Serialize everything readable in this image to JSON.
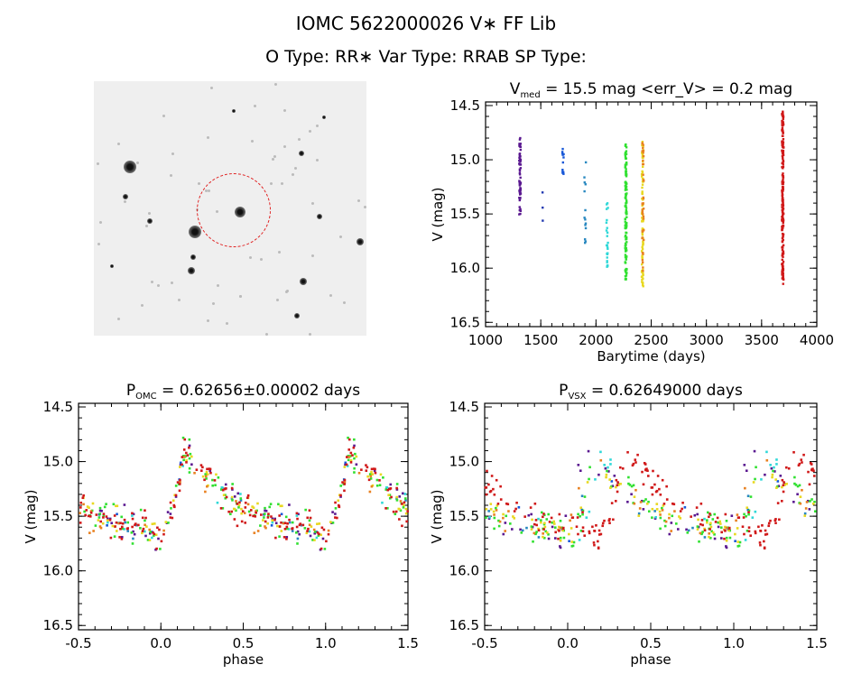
{
  "header": {
    "title": "IOMC 5622000026    V∗ FF Lib",
    "subtitle": "O Type: RR∗   Var Type: RRAB   SP Type:"
  },
  "image_panel": {
    "type": "finder-chart",
    "target_marker": "red-circle",
    "marker_color": "#e02020"
  },
  "chart_data": [
    {
      "type": "scatter",
      "title_prefix": "V",
      "title_sub": "med",
      "title_rest": " = 15.5 mag <err_V> = 0.2 mag",
      "xlabel": "Barytime (days)",
      "ylabel": "V (mag)",
      "xlim": [
        1000,
        4000
      ],
      "ylim": [
        16.5,
        14.5
      ],
      "y_inverted": true,
      "xticks": [
        "1000",
        "1500",
        "2000",
        "2500",
        "3000",
        "3500",
        "4000"
      ],
      "yticks": [
        "14.5",
        "15.0",
        "15.5",
        "16.0",
        "16.5"
      ],
      "series": [
        {
          "color": "#5a1890",
          "time": 1310,
          "v_range": [
            14.78,
            15.52
          ],
          "count": 60
        },
        {
          "color": "#2038b0",
          "time": 1510,
          "v_range": [
            15.13,
            15.72
          ],
          "count": 3
        },
        {
          "color": "#1858d8",
          "time": 1700,
          "v_range": [
            14.88,
            15.18
          ],
          "count": 12
        },
        {
          "color": "#2888c0",
          "time": 1900,
          "v_range": [
            14.98,
            15.95
          ],
          "count": 14
        },
        {
          "color": "#30d8d8",
          "time": 2100,
          "v_range": [
            15.38,
            15.99
          ],
          "count": 25
        },
        {
          "color": "#30e030",
          "time": 2270,
          "v_range": [
            14.85,
            16.15
          ],
          "count": 120
        },
        {
          "color": "#e8d820",
          "time": 2420,
          "v_range": [
            14.83,
            16.18
          ],
          "count": 80
        },
        {
          "color": "#e88020",
          "time": 2425,
          "v_range": [
            14.83,
            16.05
          ],
          "count": 40
        },
        {
          "color": "#d01818",
          "time": 3690,
          "v_range": [
            14.55,
            16.15
          ],
          "count": 200
        }
      ]
    },
    {
      "type": "scatter",
      "title_prefix": "P",
      "title_sub": "OMC",
      "title_rest": " = 0.62656±0.00002 days",
      "xlabel": "phase",
      "ylabel": "V (mag)",
      "xlim": [
        -0.5,
        1.5
      ],
      "ylim": [
        16.5,
        14.5
      ],
      "y_inverted": true,
      "xticks": [
        "-0.5",
        "0.0",
        "0.5",
        "1.0",
        "1.5"
      ],
      "yticks": [
        "14.5",
        "15.0",
        "15.5",
        "16.0",
        "16.5"
      ],
      "light_curve": {
        "phase": [
          0.0,
          0.08,
          0.14,
          0.2,
          0.35,
          0.5,
          0.7,
          0.9,
          1.0
        ],
        "v": [
          15.7,
          15.4,
          14.9,
          15.0,
          15.25,
          15.45,
          15.55,
          15.6,
          15.7
        ]
      },
      "season_phase_offsets": [
        0,
        0,
        0,
        0,
        0,
        0,
        0,
        0,
        0
      ]
    },
    {
      "type": "scatter",
      "title_prefix": "P",
      "title_sub": "VSX",
      "title_rest": " = 0.62649000 days",
      "xlabel": "phase",
      "ylabel": "V (mag)",
      "xlim": [
        -0.5,
        1.5
      ],
      "ylim": [
        16.5,
        14.5
      ],
      "y_inverted": true,
      "xticks": [
        "-0.5",
        "0.0",
        "0.5",
        "1.0",
        "1.5"
      ],
      "yticks": [
        "14.5",
        "15.0",
        "15.5",
        "16.0",
        "16.5"
      ],
      "light_curve": {
        "phase": [
          0.0,
          0.08,
          0.14,
          0.2,
          0.35,
          0.5,
          0.7,
          0.9,
          1.0
        ],
        "v": [
          15.7,
          15.4,
          14.9,
          15.0,
          15.25,
          15.45,
          15.55,
          15.6,
          15.7
        ]
      },
      "season_phase_offsets": [
        0.05,
        0.05,
        0.0,
        0.0,
        -0.05,
        -0.02,
        0.0,
        0.02,
        -0.2
      ]
    }
  ]
}
